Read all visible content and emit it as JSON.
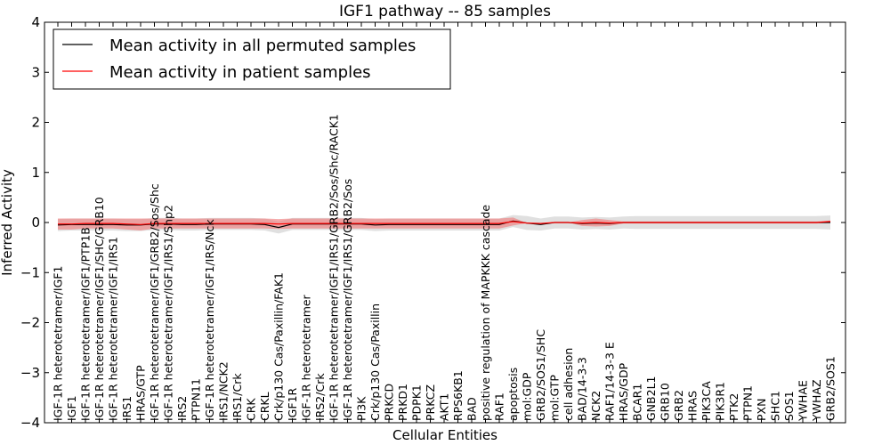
{
  "chart_data": {
    "type": "line",
    "title": "IGF1 pathway -- 85 samples",
    "xlabel": "Cellular Entities",
    "ylabel": "Inferred Activity",
    "ylim": [
      -4,
      4
    ],
    "yticks": [
      4,
      3,
      2,
      1,
      0,
      -1,
      -2,
      -3,
      -4
    ],
    "ytick_labels": [
      "4",
      "3",
      "2",
      "1",
      "0",
      "−1",
      "−2",
      "−3",
      "−4"
    ],
    "legend": {
      "position": "top-left",
      "entries": [
        {
          "label": "Mean activity in all permuted samples",
          "color": "#000000"
        },
        {
          "label": "Mean activity in patient samples",
          "color": "#ff0000"
        }
      ]
    },
    "categories": [
      "IGF-1R heterotetramer/IGF1",
      "IGF1",
      "IGF-1R heterotetramer/IGF1/PTP1B",
      "IGF-1R heterotetramer/IGF1/SHC/GRB10",
      "IGF-1R heterotetramer/IGF1/IRS1",
      "IRS1",
      "HRAS/GTP",
      "IGF-1R heterotetramer/IGF1/GRB2/Sos/Shc",
      "IGF-1R heterotetramer/IGF1/IRS1/Shp2",
      "IRS2",
      "PTPN11",
      "IGF-1R heterotetramer/IGF1/IRS/Nck",
      "IRS1/NCK2",
      "IRS1/Crk",
      "CRK",
      "CRKL",
      "Crk/p130 Cas/Paxillin/FAK1",
      "IGF1R",
      "IGF-1R heterotetramer",
      "IRS2/Crk",
      "IGF-1R heterotetramer/IGF1/IRS1/GRB2/Sos/Shc/RACK1",
      "IGF-1R heterotetramer/IGF1/IRS1/GRB2/Sos",
      "PI3K",
      "Crk/p130 Cas/Paxillin",
      "PRKCD",
      "PRKD1",
      "PDPK1",
      "PRKCZ",
      "AKT1",
      "RPS6KB1",
      "BAD",
      "positive regulation of MAPKKK cascade",
      "RAF1",
      "apoptosis",
      "mol:GDP",
      "GRB2/SOS1/SHC",
      "mol:GTP",
      "cell adhesion",
      "BAD/14-3-3",
      "NCK2",
      "RAF1/14-3-3 E",
      "HRAS/GDP",
      "BCAR1",
      "GNB2L1",
      "GRB10",
      "GRB2",
      "HRAS",
      "PIK3CA",
      "PIK3R1",
      "PTK2",
      "PTPN1",
      "PXN",
      "SHC1",
      "SOS1",
      "YWHAE",
      "YWHAZ",
      "GRB2/SOS1"
    ],
    "series": [
      {
        "name": "Mean activity in all permuted samples",
        "color": "#000000",
        "band_color": "#bbbbbb",
        "values": [
          -0.05,
          -0.04,
          -0.04,
          -0.04,
          -0.04,
          -0.05,
          -0.05,
          -0.03,
          -0.03,
          -0.04,
          -0.04,
          -0.03,
          -0.03,
          -0.03,
          -0.03,
          -0.04,
          -0.1,
          -0.03,
          -0.03,
          -0.03,
          -0.03,
          -0.03,
          -0.03,
          -0.05,
          -0.04,
          -0.04,
          -0.04,
          -0.04,
          -0.04,
          -0.04,
          -0.04,
          -0.04,
          -0.04,
          0.03,
          -0.01,
          -0.04,
          0.0,
          0.0,
          -0.02,
          -0.01,
          -0.02,
          0.0,
          0.0,
          0.0,
          0.0,
          0.0,
          0.0,
          0.0,
          0.0,
          0.0,
          0.0,
          0.0,
          0.0,
          0.0,
          0.0,
          0.0,
          0.0
        ],
        "band": [
          0.12,
          0.12,
          0.12,
          0.12,
          0.12,
          0.12,
          0.12,
          0.12,
          0.12,
          0.12,
          0.12,
          0.12,
          0.12,
          0.12,
          0.12,
          0.12,
          0.12,
          0.12,
          0.12,
          0.12,
          0.12,
          0.12,
          0.12,
          0.12,
          0.12,
          0.12,
          0.12,
          0.12,
          0.12,
          0.12,
          0.12,
          0.12,
          0.12,
          0.12,
          0.14,
          0.12,
          0.12,
          0.12,
          0.12,
          0.12,
          0.12,
          0.12,
          0.13,
          0.13,
          0.13,
          0.13,
          0.13,
          0.13,
          0.13,
          0.13,
          0.13,
          0.13,
          0.13,
          0.13,
          0.13,
          0.13,
          0.14
        ]
      },
      {
        "name": "Mean activity in patient samples",
        "color": "#ff0000",
        "band_color": "#f08080",
        "values": [
          -0.03,
          -0.03,
          -0.02,
          -0.02,
          -0.02,
          -0.03,
          -0.04,
          -0.02,
          -0.02,
          -0.02,
          -0.02,
          -0.02,
          -0.02,
          -0.02,
          -0.02,
          -0.02,
          -0.03,
          -0.02,
          -0.02,
          -0.02,
          -0.02,
          -0.02,
          -0.02,
          -0.02,
          -0.02,
          -0.02,
          -0.02,
          -0.02,
          -0.02,
          -0.02,
          -0.02,
          -0.02,
          -0.02,
          0.02,
          -0.01,
          -0.02,
          0.0,
          0.0,
          -0.01,
          0.0,
          -0.01,
          0.0,
          0.0,
          0.0,
          0.0,
          0.0,
          0.0,
          0.0,
          0.0,
          0.0,
          0.0,
          0.0,
          0.0,
          0.0,
          0.0,
          0.0,
          0.02
        ],
        "band": [
          0.11,
          0.11,
          0.1,
          0.1,
          0.1,
          0.11,
          0.12,
          0.1,
          0.1,
          0.1,
          0.1,
          0.1,
          0.1,
          0.1,
          0.1,
          0.1,
          0.1,
          0.1,
          0.1,
          0.1,
          0.1,
          0.1,
          0.1,
          0.1,
          0.1,
          0.1,
          0.1,
          0.1,
          0.1,
          0.1,
          0.1,
          0.1,
          0.1,
          0.08,
          0.0,
          0.0,
          0.0,
          0.0,
          0.06,
          0.08,
          0.06,
          0.02,
          0.02,
          0.02,
          0.02,
          0.02,
          0.02,
          0.02,
          0.02,
          0.02,
          0.02,
          0.02,
          0.02,
          0.02,
          0.02,
          0.02,
          0.02
        ]
      }
    ]
  }
}
